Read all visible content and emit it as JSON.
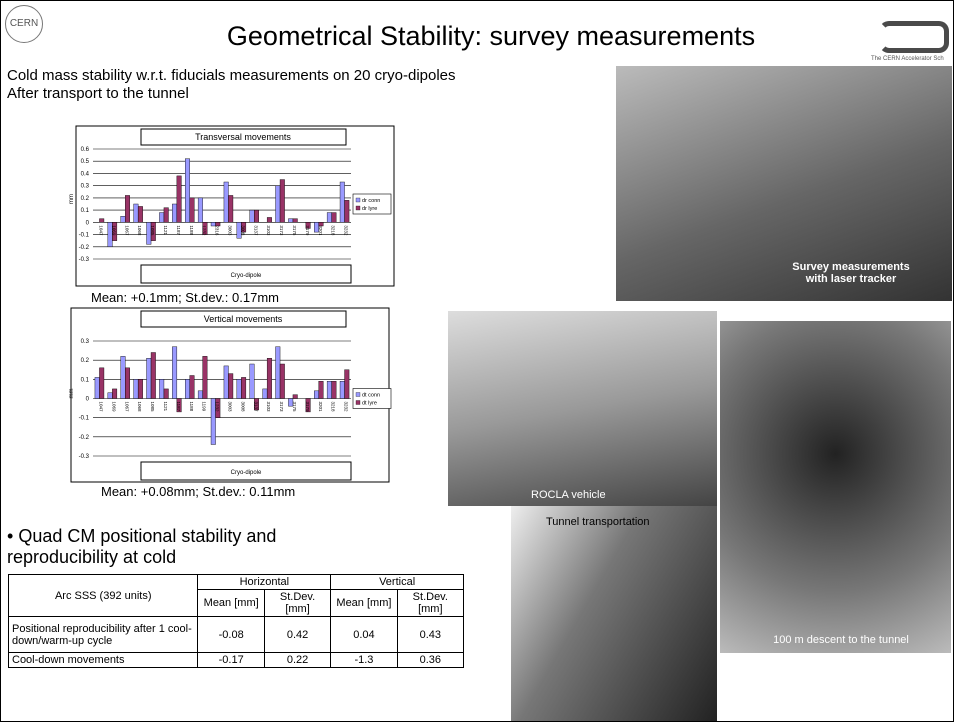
{
  "header": {
    "logo_left": "CERN",
    "title": "Geometrical Stability: survey measurements",
    "logo_right": "The CERN Accelerator Sch"
  },
  "intro": [
    "Cold mass stability w.r.t. fiducials measurements on 20 cryo-dipoles",
    "After transport to the tunnel"
  ],
  "chart_data": [
    {
      "type": "bar",
      "title": "Transversal movements",
      "x_label": "Cryo-dipole",
      "y_label": "mm",
      "categories": [
        "1047",
        "1069",
        "1067",
        "1068",
        "1085",
        "1121",
        "1187",
        "1188",
        "1232",
        "2316",
        "3003",
        "3008",
        "3137",
        "3103",
        "3173",
        "3175",
        "3179",
        "3201",
        "3218",
        "3232"
      ],
      "series": [
        {
          "name": "dr conn",
          "color": "#9999ff",
          "values": [
            0.0,
            -0.2,
            0.05,
            0.15,
            -0.18,
            0.08,
            0.15,
            0.52,
            0.2,
            -0.03,
            0.33,
            -0.13,
            0.1,
            0.0,
            0.3,
            0.03,
            0.0,
            -0.08,
            0.08,
            0.33
          ]
        },
        {
          "name": "dr lyre",
          "color": "#993366",
          "values": [
            0.03,
            -0.15,
            0.22,
            0.13,
            -0.15,
            0.12,
            0.38,
            0.2,
            -0.1,
            -0.03,
            0.22,
            -0.08,
            0.1,
            0.04,
            0.35,
            0.03,
            -0.05,
            -0.03,
            0.08,
            0.18
          ]
        }
      ],
      "ylim": [
        -0.3,
        0.6
      ],
      "yticks": [
        -0.3,
        -0.2,
        -0.1,
        0,
        0.1,
        0.2,
        0.3,
        0.4,
        0.5,
        0.6
      ],
      "grid": true,
      "legend": "right"
    },
    {
      "type": "bar",
      "title": "Vertical movements",
      "x_label": "Cryo-dipole",
      "y_label": "mm",
      "categories": [
        "1047",
        "1069",
        "1067",
        "1068",
        "1085",
        "1121",
        "1187",
        "1188",
        "1199",
        "1232",
        "3003",
        "3008",
        "3137",
        "3103",
        "3173",
        "3175",
        "3179",
        "3201",
        "3218",
        "3232"
      ],
      "series": [
        {
          "name": "dt conn",
          "color": "#9999ff",
          "values": [
            0.11,
            0.03,
            0.22,
            0.1,
            0.21,
            0.1,
            0.27,
            0.1,
            0.04,
            -0.24,
            0.17,
            0.1,
            0.18,
            0.05,
            0.27,
            -0.04,
            0.0,
            0.04,
            0.09,
            0.09
          ]
        },
        {
          "name": "dt lyre",
          "color": "#993366",
          "values": [
            0.16,
            0.05,
            0.16,
            0.1,
            0.24,
            0.05,
            -0.07,
            0.12,
            0.22,
            -0.1,
            0.13,
            0.11,
            -0.06,
            0.21,
            0.18,
            0.02,
            -0.07,
            0.09,
            0.09,
            0.15
          ]
        }
      ],
      "ylim": [
        -0.3,
        0.3
      ],
      "yticks": [
        -0.3,
        -0.2,
        -0.1,
        0,
        0.1,
        0.2,
        0.3
      ],
      "grid": true,
      "legend": "right"
    }
  ],
  "chart_captions": [
    "Mean: +0.1mm; St.dev.: 0.17mm",
    "Mean: +0.08mm; St.dev.: 0.11mm"
  ],
  "bullet": "Quad CM positional stability and reproducibility at cold",
  "table": {
    "corner": "Arc SSS (392 units)",
    "groups": [
      "Horizontal",
      "Vertical"
    ],
    "subheaders": [
      "Mean [mm]",
      "St.Dev. [mm]",
      "Mean [mm]",
      "St.Dev. [mm]"
    ],
    "rows": [
      [
        "Positional reproducibility after 1 cool-down/warm-up cycle",
        -0.08,
        0.42,
        0.04,
        0.43
      ],
      [
        "Cool-down movements",
        -0.17,
        0.22,
        -1.3,
        0.36
      ]
    ]
  },
  "photos": [
    "Survey measurements with laser tracker",
    "ROCLA vehicle",
    "Tunnel transportation",
    "100 m descent to the tunnel"
  ]
}
